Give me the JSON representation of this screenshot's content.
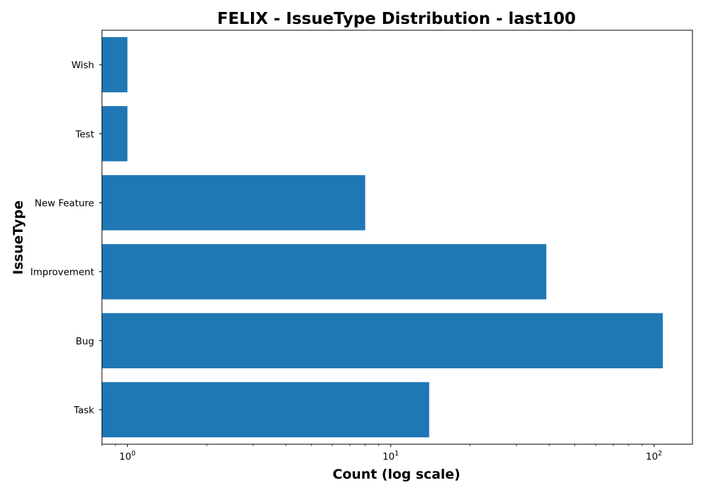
{
  "chart_data": {
    "type": "bar",
    "orientation": "horizontal",
    "title": "FELIX - IssueType Distribution - last100",
    "xlabel": "Count (log scale)",
    "ylabel": "IssueType",
    "x_scale": "log",
    "xlim": [
      0.8,
      140
    ],
    "categories": [
      "Task",
      "Bug",
      "Improvement",
      "New Feature",
      "Test",
      "Wish"
    ],
    "values": [
      14,
      108,
      39,
      8,
      1,
      1
    ],
    "x_tick_labels": [
      {
        "value": 1,
        "base": "10",
        "exp": "0"
      },
      {
        "value": 10,
        "base": "10",
        "exp": "1"
      },
      {
        "value": 100,
        "base": "10",
        "exp": "2"
      }
    ],
    "bar_color": "#1f77b4",
    "grid": false,
    "legend": "none"
  }
}
